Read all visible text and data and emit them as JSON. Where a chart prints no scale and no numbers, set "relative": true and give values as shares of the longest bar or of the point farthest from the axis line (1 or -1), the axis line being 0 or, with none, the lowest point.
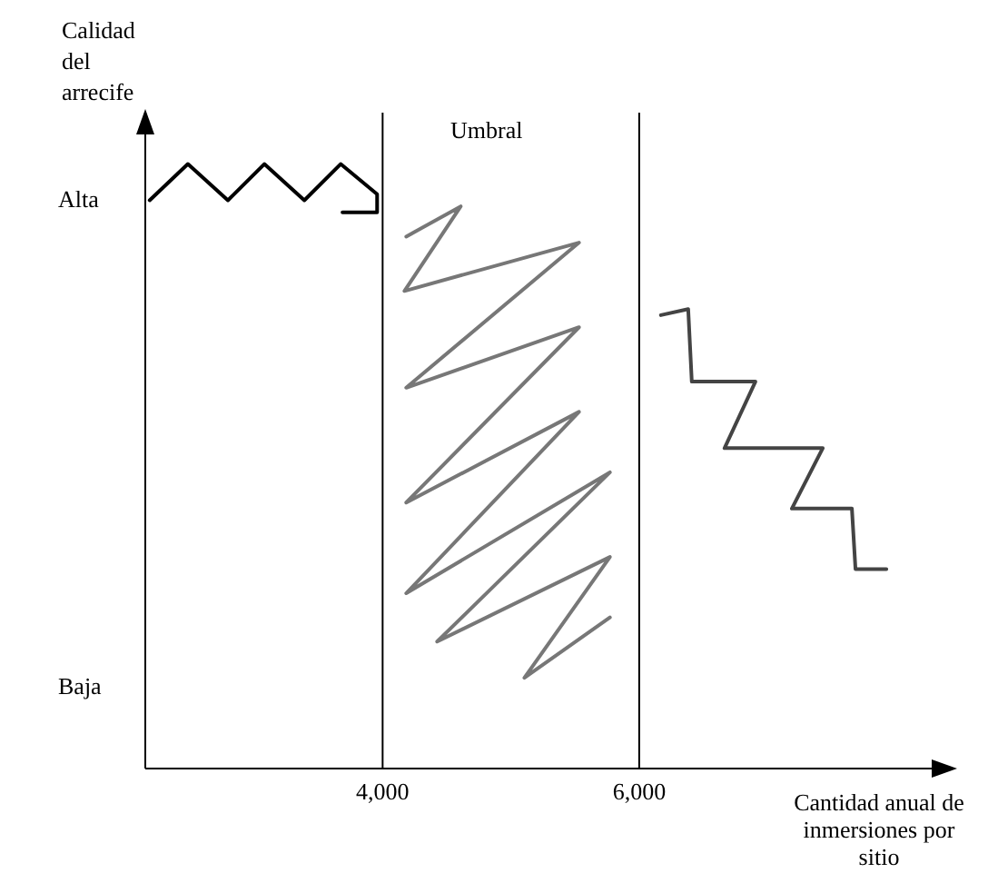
{
  "chart_data": {
    "type": "line",
    "ylabel": "Calidad del arrecife",
    "xlabel": "Cantidad anual de inmersiones por sitio",
    "xlim": [
      2150,
      8450
    ],
    "xticks": [
      {
        "value": 4000,
        "label": "4,000"
      },
      {
        "value": 6000,
        "label": "6,000"
      }
    ],
    "relative": true,
    "marker": "none",
    "line_style": "solid",
    "series": [
      {
        "color": "#000000",
        "x": [
          2184,
          2482,
          2794,
          3078,
          3390,
          3673,
          3957,
          3957,
          3687
        ],
        "values": [
          0.94,
          1,
          0.94,
          1,
          0.94,
          1,
          0.95,
          0.92,
          0.92
        ]
      },
      {
        "color": "#777777",
        "x": [
          4184,
          4609,
          4170,
          5531,
          4184,
          5531,
          4184,
          5531,
          4184,
          5772,
          4425,
          5772,
          5105,
          5772
        ],
        "values": [
          0.88,
          0.93,
          0.79,
          0.87,
          0.63,
          0.73,
          0.44,
          0.59,
          0.29,
          0.49,
          0.21,
          0.35,
          0.15,
          0.25
        ]
      },
      {
        "color": "#444444",
        "x": [
          6169,
          6382,
          6410,
          6906,
          6665,
          7431,
          7190,
          7658,
          7686,
          7927
        ],
        "values": [
          0.75,
          0.76,
          0.64,
          0.64,
          0.53,
          0.53,
          0.43,
          0.43,
          0.33,
          0.33
        ]
      }
    ],
    "ref_lines": [
      {
        "axis": "x",
        "value": 4000,
        "color": "#000000"
      },
      {
        "axis": "x",
        "value": 6000,
        "color": "#000000"
      }
    ],
    "annotations": [
      "Umbral",
      "Alta",
      "Baja"
    ]
  }
}
